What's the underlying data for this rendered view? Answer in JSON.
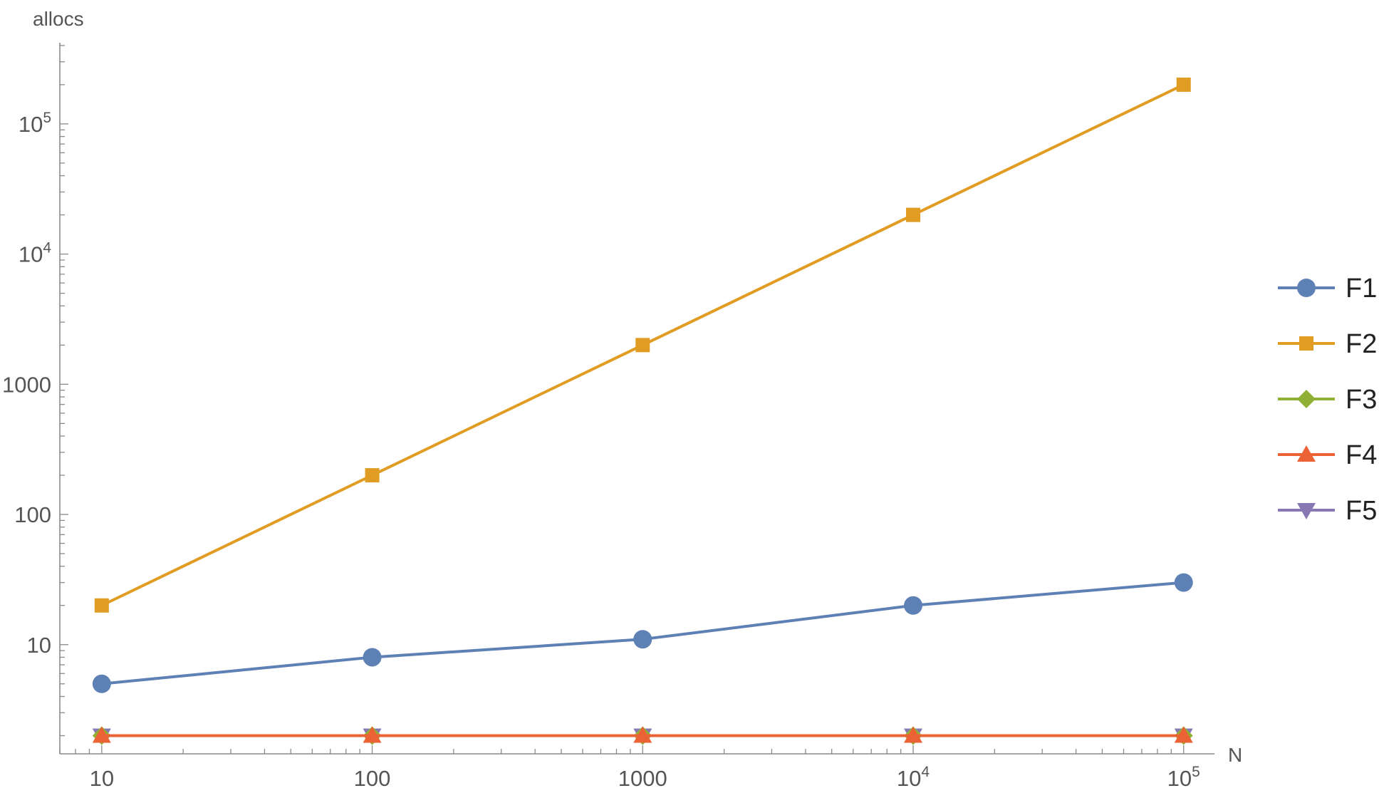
{
  "chart_data": {
    "type": "line",
    "xlabel": "N",
    "ylabel": "allocs",
    "x_scale": "log",
    "y_scale": "log",
    "x": [
      10,
      100,
      1000,
      10000,
      100000
    ],
    "xlim": [
      7,
      130000
    ],
    "ylim": [
      1.45,
      420000
    ],
    "x_ticks": [
      {
        "value": 10,
        "base": "10",
        "exp": ""
      },
      {
        "value": 100,
        "base": "100",
        "exp": ""
      },
      {
        "value": 1000,
        "base": "1000",
        "exp": ""
      },
      {
        "value": 10000,
        "base": "10",
        "exp": "4"
      },
      {
        "value": 100000,
        "base": "10",
        "exp": "5"
      }
    ],
    "y_ticks": [
      {
        "value": 10,
        "base": "10",
        "exp": ""
      },
      {
        "value": 100,
        "base": "100",
        "exp": ""
      },
      {
        "value": 1000,
        "base": "1000",
        "exp": ""
      },
      {
        "value": 10000,
        "base": "10",
        "exp": "4"
      },
      {
        "value": 100000,
        "base": "10",
        "exp": "5"
      }
    ],
    "grid": false,
    "legend_position": "right",
    "series": [
      {
        "name": "F1",
        "marker": "circle",
        "color": "#5E81B5",
        "values": [
          5,
          8,
          11,
          20,
          30
        ]
      },
      {
        "name": "F2",
        "marker": "square",
        "color": "#E19C24",
        "values": [
          20,
          200,
          2000,
          20000,
          200000
        ]
      },
      {
        "name": "F3",
        "marker": "diamond",
        "color": "#8FB032",
        "values": [
          2,
          2,
          2,
          2,
          2
        ]
      },
      {
        "name": "F4",
        "marker": "triangle-up",
        "color": "#EB6235",
        "values": [
          2,
          2,
          2,
          2,
          2
        ]
      },
      {
        "name": "F5",
        "marker": "triangle-down",
        "color": "#8778B3",
        "values": [
          2,
          2,
          2,
          2,
          2
        ]
      }
    ]
  }
}
